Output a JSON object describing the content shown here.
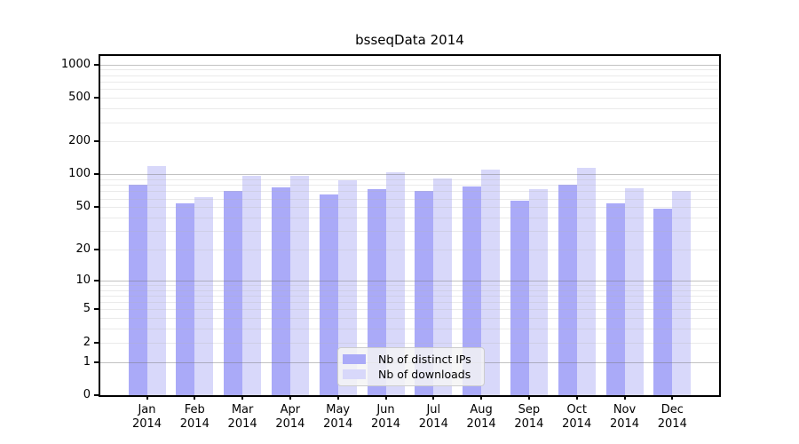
{
  "chart_data": {
    "type": "bar",
    "title": "bsseqData 2014",
    "year_label": "2014",
    "categories": [
      "Jan",
      "Feb",
      "Mar",
      "Apr",
      "May",
      "Jun",
      "Jul",
      "Aug",
      "Sep",
      "Oct",
      "Nov",
      "Dec"
    ],
    "series": [
      {
        "name": "Nb of distinct IPs",
        "color": "#aaaaf8",
        "values": [
          80,
          54,
          71,
          76,
          65,
          73,
          70,
          78,
          57,
          81,
          54,
          48
        ]
      },
      {
        "name": "Nb of downloads",
        "color": "#d8d8fa",
        "values": [
          119,
          62,
          97,
          97,
          89,
          105,
          91,
          111,
          73,
          115,
          75,
          70
        ]
      }
    ],
    "yscale": "log1p",
    "ylim": [
      0,
      1200
    ],
    "yticks": [
      0,
      1,
      2,
      5,
      10,
      20,
      50,
      100,
      200,
      500,
      1000
    ],
    "major_gridlines": [
      1,
      10,
      100,
      1000
    ],
    "minor_gridlines": [
      2,
      3,
      4,
      5,
      6,
      7,
      8,
      9,
      20,
      30,
      40,
      50,
      60,
      70,
      80,
      90,
      200,
      300,
      400,
      500,
      600,
      700,
      800,
      900
    ],
    "grid": true,
    "legend_position": "lower center"
  },
  "colors": {
    "bar_ips": "#aaaaf8",
    "bar_downloads": "#d8d8fa",
    "major_grid": "#b8b8b8",
    "minor_grid": "#ececec",
    "axis_frame": "#000000",
    "legend_background": "#f2f2f2",
    "legend_border": "#cccccc",
    "text": "#000000",
    "background": "#ffffff"
  }
}
